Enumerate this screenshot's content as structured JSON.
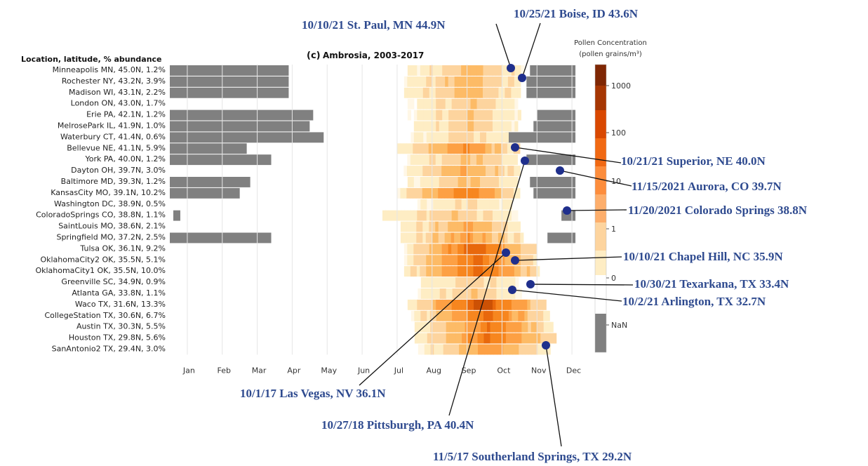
{
  "chart_data": {
    "type": "heatmap",
    "panel_label": "(c)",
    "title": "Ambrosia, 2003-2017",
    "row_header": "Location, latitude, % abundance",
    "months": [
      "Jan",
      "Feb",
      "Mar",
      "Apr",
      "May",
      "Jun",
      "Jul",
      "Aug",
      "Sep",
      "Oct",
      "Nov",
      "Dec"
    ],
    "colorbar": {
      "title_line1": "Pollen Concentration",
      "title_line2": "(pollen grains/m³)",
      "ticks": [
        "1000",
        "100",
        "10",
        "1",
        "0",
        "NaN"
      ],
      "colors": [
        "#7f2704",
        "#a63603",
        "#d94801",
        "#f16913",
        "#fd8d3c",
        "#fdae6b",
        "#fdd49e",
        "#feedc4",
        "#ffffff",
        "#808080"
      ]
    },
    "sites": [
      {
        "label": "Minneapolis MN, 45.0N,  1.2%",
        "nan": [
          [
            0,
            3.4
          ]
        ],
        "nan_end": [
          [
            10.3,
            11.6
          ]
        ],
        "peak": [
          7.4,
          9.7
        ],
        "intensity": 0.35
      },
      {
        "label": "Rochester NY, 43.2N,  3.9%",
        "nan": [
          [
            0,
            3.4
          ]
        ],
        "nan_end": [
          [
            10.2,
            11.6
          ]
        ],
        "peak": [
          7.3,
          9.6
        ],
        "intensity": 0.4
      },
      {
        "label": "Madison WI, 43.1N,  2.2%",
        "nan": [
          [
            0,
            3.4
          ]
        ],
        "nan_end": [
          [
            10.2,
            11.6
          ]
        ],
        "peak": [
          7.3,
          9.6
        ],
        "intensity": 0.4
      },
      {
        "label": "London ON, 43.0N,  1.7%",
        "nan": [],
        "nan_end": [],
        "peak": [
          7.4,
          9.5
        ],
        "intensity": 0.3
      },
      {
        "label": "Erie PA, 42.1N,  1.2%",
        "nan": [
          [
            0,
            4.1
          ]
        ],
        "nan_end": [
          [
            10.5,
            11.6
          ]
        ],
        "peak": [
          7.4,
          9.6
        ],
        "intensity": 0.3
      },
      {
        "label": "MelrosePark IL, 41.9N,  1.0%",
        "nan": [
          [
            0,
            4.0
          ]
        ],
        "nan_end": [
          [
            10.4,
            11.6
          ]
        ],
        "peak": [
          7.4,
          9.5
        ],
        "intensity": 0.3
      },
      {
        "label": "Waterbury CT, 41.4N,  0.6%",
        "nan": [
          [
            0,
            4.4
          ]
        ],
        "nan_end": [
          [
            9.6,
            11.6
          ]
        ],
        "peak": [
          7.4,
          9.3
        ],
        "intensity": 0.25
      },
      {
        "label": "Bellevue NE, 41.1N,  5.9%",
        "nan": [
          [
            0,
            2.2
          ]
        ],
        "nan_end": [],
        "peak": [
          7.1,
          9.6
        ],
        "intensity": 0.55
      },
      {
        "label": "York PA, 40.0N,  1.2%",
        "nan": [
          [
            0,
            2.9
          ]
        ],
        "nan_end": [
          [
            10.2,
            11.6
          ]
        ],
        "peak": [
          7.3,
          9.5
        ],
        "intensity": 0.35
      },
      {
        "label": "Dayton OH, 39.7N,  3.0%",
        "nan": [],
        "nan_end": [],
        "peak": [
          7.2,
          9.6
        ],
        "intensity": 0.45
      },
      {
        "label": "Baltimore MD, 39.3N,  1.2%",
        "nan": [
          [
            0,
            2.3
          ]
        ],
        "nan_end": [
          [
            10.3,
            11.6
          ]
        ],
        "peak": [
          7.4,
          9.5
        ],
        "intensity": 0.35
      },
      {
        "label": "KansasCity MO, 39.1N, 10.2%",
        "nan": [
          [
            0,
            2.0
          ]
        ],
        "nan_end": [
          [
            10.4,
            11.6
          ]
        ],
        "peak": [
          7.1,
          9.6
        ],
        "intensity": 0.65
      },
      {
        "label": "Washington DC, 38.9N,  0.5%",
        "nan": [],
        "nan_end": [],
        "peak": [
          7.5,
          9.4
        ],
        "intensity": 0.2
      },
      {
        "label": "ColoradoSprings CO, 38.8N,  1.1%",
        "nan": [
          [
            0.1,
            0.3
          ]
        ],
        "nan_end": [
          [
            11.2,
            11.6
          ]
        ],
        "peak": [
          6.5,
          9.5
        ],
        "intensity": 0.3
      },
      {
        "label": "SaintLouis MO, 38.6N,  2.1%",
        "nan": [],
        "nan_end": [],
        "peak": [
          7.2,
          9.6
        ],
        "intensity": 0.45
      },
      {
        "label": "Springfield MO, 37.2N,  2.5%",
        "nan": [
          [
            0,
            2.9
          ]
        ],
        "nan_end": [
          [
            10.8,
            11.6
          ]
        ],
        "peak": [
          7.2,
          9.7
        ],
        "intensity": 0.5
      },
      {
        "label": "Tulsa OK, 36.1N,  9.2%",
        "nan": [],
        "nan_end": [],
        "peak": [
          7.3,
          10.0
        ],
        "intensity": 0.75
      },
      {
        "label": "OklahomaCity2 OK, 35.5N,  5.1%",
        "nan": [],
        "nan_end": [],
        "peak": [
          7.3,
          10.0
        ],
        "intensity": 0.7
      },
      {
        "label": "OklahomaCity1 OK, 35.5N, 10.0%",
        "nan": [],
        "nan_end": [],
        "peak": [
          7.3,
          10.1
        ],
        "intensity": 0.75
      },
      {
        "label": "Greenville SC, 34.9N,  0.9%",
        "nan": [],
        "nan_end": [],
        "peak": [
          7.6,
          9.6
        ],
        "intensity": 0.25
      },
      {
        "label": "Atlanta GA, 33.8N,  1.1%",
        "nan": [],
        "nan_end": [],
        "peak": [
          7.6,
          9.6
        ],
        "intensity": 0.3
      },
      {
        "label": "Waco TX, 31.6N, 13.3%",
        "nan": [],
        "nan_end": [],
        "peak": [
          7.4,
          10.3
        ],
        "intensity": 0.85
      },
      {
        "label": "CollegeStation TX, 30.6N,  6.7%",
        "nan": [],
        "nan_end": [],
        "peak": [
          7.5,
          10.4
        ],
        "intensity": 0.7
      },
      {
        "label": "Austin TX, 30.3N,  5.5%",
        "nan": [],
        "nan_end": [],
        "peak": [
          7.6,
          10.5
        ],
        "intensity": 0.65
      },
      {
        "label": "Houston TX, 29.8N,  5.6%",
        "nan": [],
        "nan_end": [],
        "peak": [
          7.6,
          10.6
        ],
        "intensity": 0.7
      },
      {
        "label": "SanAntonio2 TX, 29.4N,  3.0%",
        "nan": [],
        "nan_end": [],
        "peak": [
          7.7,
          10.4
        ],
        "intensity": 0.5
      }
    ]
  },
  "annotations": [
    {
      "text": "10/10/21 St. Paul, MN 44.9N"
    },
    {
      "text": "10/25/21 Boise, ID 43.6N"
    },
    {
      "text": "10/21/21 Superior, NE 40.0N"
    },
    {
      "text": "11/15/2021 Aurora, CO 39.7N"
    },
    {
      "text": "11/20/2021 Colorado Springs 38.8N"
    },
    {
      "text": "10/10/21 Chapel Hill, NC 35.9N"
    },
    {
      "text": "10/30/21 Texarkana, TX 33.4N"
    },
    {
      "text": "10/2/21 Arlington, TX 32.7N"
    },
    {
      "text": "10/1/17 Las Vegas, NV 36.1N"
    },
    {
      "text": "10/27/18 Pittsburgh, PA 40.4N"
    },
    {
      "text": "11/5/17 Southerland Springs, TX  29.2N"
    }
  ]
}
